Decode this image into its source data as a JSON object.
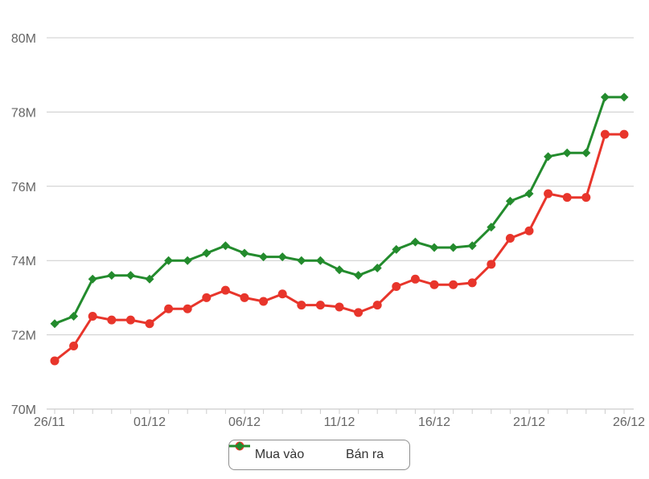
{
  "chart_data": {
    "type": "line",
    "y_tick_labels": [
      "70M",
      "72M",
      "74M",
      "76M",
      "78M",
      "80M"
    ],
    "y_ticks": [
      70,
      72,
      74,
      76,
      78,
      80
    ],
    "ylim": [
      70,
      80
    ],
    "x_tick_labels": [
      "26/11",
      "01/12",
      "06/12",
      "11/12",
      "16/12",
      "21/12",
      "26/12"
    ],
    "x_tick_index": [
      0,
      5,
      10,
      15,
      20,
      25,
      30
    ],
    "grid": true,
    "legend_placement": "bottom",
    "series": [
      {
        "name": "Mua vào",
        "color": "#e8352b",
        "marker": "circle",
        "values": [
          71.3,
          71.7,
          72.5,
          72.4,
          72.4,
          72.3,
          72.7,
          72.7,
          73.0,
          73.2,
          73.0,
          72.9,
          73.1,
          72.8,
          72.8,
          72.75,
          72.6,
          72.8,
          73.3,
          73.5,
          73.35,
          73.35,
          73.4,
          73.9,
          74.6,
          74.8,
          75.8,
          75.7,
          75.7,
          77.4,
          77.4
        ]
      },
      {
        "name": "Bán ra",
        "color": "#238b2d",
        "marker": "diamond",
        "values": [
          72.3,
          72.5,
          73.5,
          73.6,
          73.6,
          73.5,
          74.0,
          74.0,
          74.2,
          74.4,
          74.2,
          74.1,
          74.1,
          74.0,
          74.0,
          73.75,
          73.6,
          73.8,
          74.3,
          74.5,
          74.35,
          74.35,
          74.4,
          74.9,
          75.6,
          75.8,
          76.8,
          76.9,
          76.9,
          78.4,
          78.4
        ]
      }
    ]
  }
}
